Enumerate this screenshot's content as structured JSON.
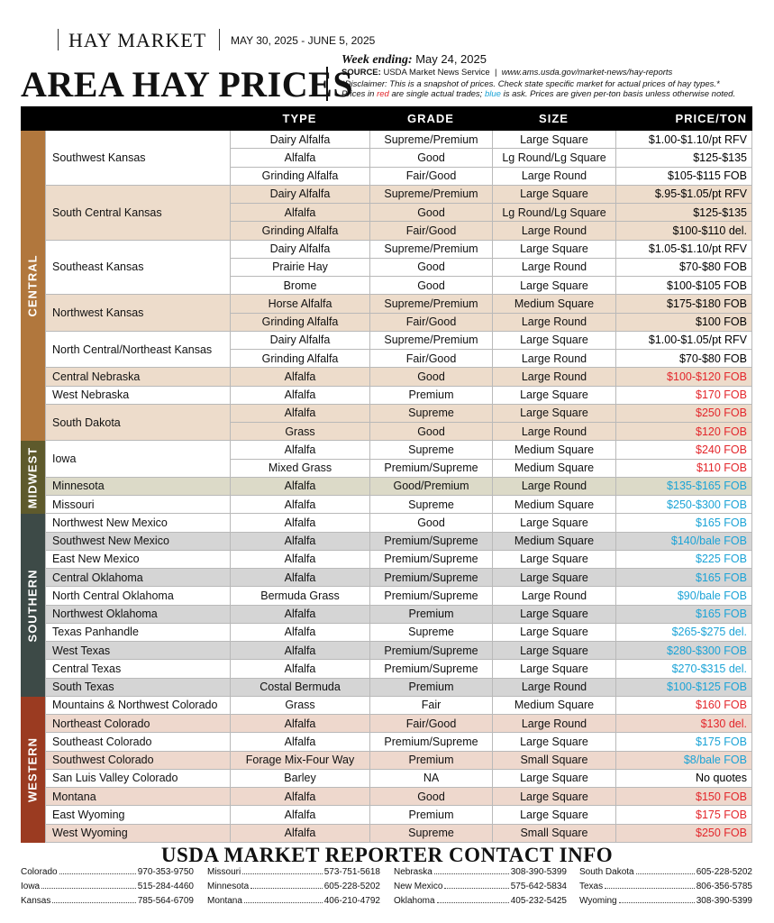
{
  "header": {
    "section": "HAY MARKET",
    "dates": "MAY 30, 2025 - JUNE 5, 2025",
    "title": "AREA HAY PRICES",
    "week_label": "Week ending:",
    "week_date": "May 24, 2025",
    "source_label": "SOURCE:",
    "source": "USDA Market News Service",
    "url": "www.ams.usda.gov/market-news/hay-reports",
    "disclaimer": "*Disclaimer: This is a snapshot of prices. Check state specific market for actual prices of hay types.*",
    "note": [
      "Prices in ",
      "red",
      " are single actual trades; ",
      "blue",
      " is ask. Prices are given per-ton basis unless otherwise noted."
    ]
  },
  "table": {
    "columns": [
      "TYPE",
      "GRADE",
      "SIZE",
      "PRICE/TON"
    ],
    "regions": [
      {
        "name": "CENTRAL",
        "color": "#b1773d",
        "shade": "#eddccb",
        "groups": [
          {
            "location": "Southwest Kansas",
            "shaded": false,
            "price_color": "#000000",
            "rows": [
              [
                "Dairy Alfalfa",
                "Supreme/Premium",
                "Large Square",
                "$1.00-$1.10/pt RFV"
              ],
              [
                "Alfalfa",
                "Good",
                "Lg Round/Lg Square",
                "$125-$135"
              ],
              [
                "Grinding Alfalfa",
                "Fair/Good",
                "Large Round",
                "$105-$115 FOB"
              ]
            ]
          },
          {
            "location": "South Central Kansas",
            "shaded": true,
            "price_color": "#000000",
            "rows": [
              [
                "Dairy Alfalfa",
                "Supreme/Premium",
                "Large Square",
                "$.95-$1.05/pt RFV"
              ],
              [
                "Alfalfa",
                "Good",
                "Lg Round/Lg Square",
                "$125-$135"
              ],
              [
                "Grinding Alfalfa",
                "Fair/Good",
                "Large Round",
                "$100-$110 del."
              ]
            ]
          },
          {
            "location": "Southeast Kansas",
            "shaded": false,
            "price_color": "#000000",
            "rows": [
              [
                "Dairy Alfalfa",
                "Supreme/Premium",
                "Large Square",
                "$1.05-$1.10/pt RFV"
              ],
              [
                "Prairie Hay",
                "Good",
                "Large Round",
                "$70-$80 FOB"
              ],
              [
                "Brome",
                "Good",
                "Large Square",
                "$100-$105 FOB"
              ]
            ]
          },
          {
            "location": "Northwest Kansas",
            "shaded": true,
            "price_color": "#000000",
            "rows": [
              [
                "Horse Alfalfa",
                "Supreme/Premium",
                "Medium Square",
                "$175-$180 FOB"
              ],
              [
                "Grinding Alfalfa",
                "Fair/Good",
                "Large Round",
                "$100 FOB"
              ]
            ]
          },
          {
            "location": "North Central/Northeast Kansas",
            "shaded": false,
            "price_color": "#000000",
            "rows": [
              [
                "Dairy Alfalfa",
                "Supreme/Premium",
                "Large Square",
                "$1.00-$1.05/pt RFV"
              ],
              [
                "Grinding Alfalfa",
                "Fair/Good",
                "Large Round",
                "$70-$80 FOB"
              ]
            ]
          },
          {
            "location": "Central Nebraska",
            "shaded": true,
            "price_color": "#e3262b",
            "rows": [
              [
                "Alfalfa",
                "Good",
                "Large Round",
                "$100-$120 FOB"
              ]
            ]
          },
          {
            "location": "West Nebraska",
            "shaded": false,
            "price_color": "#e3262b",
            "rows": [
              [
                "Alfalfa",
                "Premium",
                "Large Square",
                "$170 FOB"
              ]
            ]
          },
          {
            "location": "South Dakota",
            "shaded": true,
            "price_color": "#e3262b",
            "rows": [
              [
                "Alfalfa",
                "Supreme",
                "Large Square",
                "$250 FOB"
              ],
              [
                "Grass",
                "Good",
                "Large Round",
                "$120 FOB"
              ]
            ]
          }
        ]
      },
      {
        "name": "MIDWEST",
        "color": "#5e5a2c",
        "shade": "#dcdac8",
        "groups": [
          {
            "location": "Iowa",
            "shaded": false,
            "price_color": "#e3262b",
            "rows": [
              [
                "Alfalfa",
                "Supreme",
                "Medium Square",
                "$240 FOB"
              ],
              [
                "Mixed Grass",
                "Premium/Supreme",
                "Medium Square",
                "$110 FOB"
              ]
            ]
          },
          {
            "location": "Minnesota",
            "shaded": true,
            "price_color": "#1ba3d6",
            "rows": [
              [
                "Alfalfa",
                "Good/Premium",
                "Large Round",
                "$135-$165 FOB"
              ]
            ]
          },
          {
            "location": "Missouri",
            "shaded": false,
            "price_color": "#1ba3d6",
            "rows": [
              [
                "Alfalfa",
                "Supreme",
                "Medium Square",
                "$250-$300 FOB"
              ]
            ]
          }
        ]
      },
      {
        "name": "SOUTHERN",
        "color": "#3d4a47",
        "shade": "#d5d5d5",
        "groups": [
          {
            "location": "Northwest New Mexico",
            "shaded": false,
            "price_color": "#1ba3d6",
            "rows": [
              [
                "Alfalfa",
                "Good",
                "Large Square",
                "$165 FOB"
              ]
            ]
          },
          {
            "location": "Southwest New Mexico",
            "shaded": true,
            "price_color": "#1ba3d6",
            "rows": [
              [
                "Alfalfa",
                "Premium/Supreme",
                "Medium Square",
                "$140/bale FOB"
              ]
            ]
          },
          {
            "location": "East New Mexico",
            "shaded": false,
            "price_color": "#1ba3d6",
            "rows": [
              [
                "Alfalfa",
                "Premium/Supreme",
                "Large Square",
                "$225 FOB"
              ]
            ]
          },
          {
            "location": "Central Oklahoma",
            "shaded": true,
            "price_color": "#1ba3d6",
            "rows": [
              [
                "Alfalfa",
                "Premium/Supreme",
                "Large Square",
                "$165 FOB"
              ]
            ]
          },
          {
            "location": "North Central Oklahoma",
            "shaded": false,
            "price_color": "#1ba3d6",
            "rows": [
              [
                "Bermuda Grass",
                "Premium/Supreme",
                "Large Round",
                "$90/bale FOB"
              ]
            ]
          },
          {
            "location": "Northwest Oklahoma",
            "shaded": true,
            "price_color": "#1ba3d6",
            "rows": [
              [
                "Alfalfa",
                "Premium",
                "Large Square",
                "$165 FOB"
              ]
            ]
          },
          {
            "location": "Texas Panhandle",
            "shaded": false,
            "price_color": "#1ba3d6",
            "rows": [
              [
                "Alfalfa",
                "Supreme",
                "Large Square",
                "$265-$275 del."
              ]
            ]
          },
          {
            "location": "West Texas",
            "shaded": true,
            "price_color": "#1ba3d6",
            "rows": [
              [
                "Alfalfa",
                "Premium/Supreme",
                "Large Square",
                "$280-$300 FOB"
              ]
            ]
          },
          {
            "location": "Central Texas",
            "shaded": false,
            "price_color": "#1ba3d6",
            "rows": [
              [
                "Alfalfa",
                "Premium/Supreme",
                "Large Square",
                "$270-$315 del."
              ]
            ]
          },
          {
            "location": "South Texas",
            "shaded": true,
            "price_color": "#1ba3d6",
            "rows": [
              [
                "Costal Bermuda",
                "Premium",
                "Large Round",
                "$100-$125 FOB"
              ]
            ]
          }
        ]
      },
      {
        "name": "WESTERN",
        "color": "#9b3b21",
        "shade": "#eed8cd",
        "groups": [
          {
            "location": "Mountains & Northwest Colorado",
            "shaded": false,
            "price_color": "#e3262b",
            "rows": [
              [
                "Grass",
                "Fair",
                "Medium Square",
                "$160 FOB"
              ]
            ]
          },
          {
            "location": "Northeast Colorado",
            "shaded": true,
            "price_color": "#e3262b",
            "rows": [
              [
                "Alfalfa",
                "Fair/Good",
                "Large Round",
                "$130 del."
              ]
            ]
          },
          {
            "location": "Southeast Colorado",
            "shaded": false,
            "price_color": "#1ba3d6",
            "rows": [
              [
                "Alfalfa",
                "Premium/Supreme",
                "Large Square",
                "$175 FOB"
              ]
            ]
          },
          {
            "location": "Southwest Colorado",
            "shaded": true,
            "price_color": "#1ba3d6",
            "rows": [
              [
                "Forage Mix-Four Way",
                "Premium",
                "Small Square",
                "$8/bale FOB"
              ]
            ]
          },
          {
            "location": "San Luis Valley Colorado",
            "shaded": false,
            "price_color": "#000000",
            "rows": [
              [
                "Barley",
                "NA",
                "Large Square",
                "No quotes"
              ]
            ]
          },
          {
            "location": "Montana",
            "shaded": true,
            "price_color": "#e3262b",
            "rows": [
              [
                "Alfalfa",
                "Good",
                "Large Square",
                "$150 FOB"
              ]
            ]
          },
          {
            "location": "East Wyoming",
            "shaded": false,
            "price_color": "#e3262b",
            "rows": [
              [
                "Alfalfa",
                "Premium",
                "Large Square",
                "$175 FOB"
              ]
            ]
          },
          {
            "location": "West Wyoming",
            "shaded": true,
            "price_color": "#e3262b",
            "rows": [
              [
                "Alfalfa",
                "Supreme",
                "Small Square",
                "$250 FOB"
              ]
            ]
          }
        ]
      }
    ]
  },
  "contacts": {
    "title": "USDA MARKET REPORTER CONTACT INFO",
    "columns": [
      [
        [
          "Colorado",
          "970-353-9750"
        ],
        [
          "Iowa",
          "515-284-4460"
        ],
        [
          "Kansas",
          "785-564-6709"
        ]
      ],
      [
        [
          "Missouri",
          "573-751-5618"
        ],
        [
          "Minnesota",
          "605-228-5202"
        ],
        [
          "Montana",
          "406-210-4792"
        ]
      ],
      [
        [
          "Nebraska",
          "308-390-5399"
        ],
        [
          "New Mexico",
          "575-642-5834"
        ],
        [
          "Oklahoma",
          "405-232-5425"
        ]
      ],
      [
        [
          "South Dakota",
          "605-228-5202"
        ],
        [
          "Texas",
          "806-356-5785"
        ],
        [
          "Wyoming",
          "308-390-5399"
        ]
      ]
    ]
  }
}
